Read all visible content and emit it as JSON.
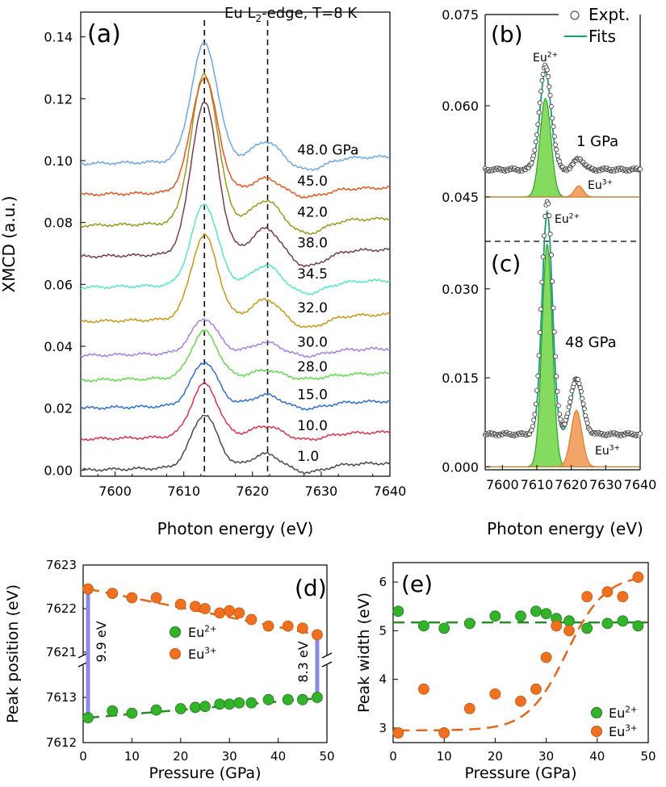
{
  "chart_data": [
    {
      "id": "a",
      "type": "line",
      "panel_label": "(a)",
      "title": "Eu L2-edge, T=8 K",
      "title_parts": {
        "pre": "Eu L",
        "sub": "2",
        "post": "-edge, T=8 K"
      },
      "xlabel": "Photon energy (eV)",
      "ylabel": "XMCD (a.u.)",
      "xlim": [
        7595,
        7640
      ],
      "ylim": [
        -0.002,
        0.148
      ],
      "xticks": [
        7600,
        7610,
        7620,
        7630,
        7640
      ],
      "yticks": [
        0.0,
        0.02,
        0.04,
        0.06,
        0.08,
        0.1,
        0.12,
        0.14
      ],
      "ytick_labels": [
        "0.00",
        "0.02",
        "0.04",
        "0.06",
        "0.08",
        "0.10",
        "0.12",
        "0.14"
      ],
      "vlines": [
        7613,
        7622.2
      ],
      "series": [
        {
          "name": "1.0",
          "label": "1.0",
          "color": "#4a4a4a",
          "offset": 0.0,
          "peak1": 0.017,
          "peak2": 0.004
        },
        {
          "name": "10.0",
          "label": "10.0",
          "color": "#e0324a",
          "offset": 0.01,
          "peak1": 0.017,
          "peak2": 0.003
        },
        {
          "name": "15.0",
          "label": "15.0",
          "color": "#2e6fd1",
          "offset": 0.02,
          "peak1": 0.014,
          "peak2": 0.003
        },
        {
          "name": "28.0",
          "label": "28.0",
          "color": "#5edc4a",
          "offset": 0.029,
          "peak1": 0.015,
          "peak2": 0.002
        },
        {
          "name": "30.0",
          "label": "30.0",
          "color": "#a87ee0",
          "offset": 0.037,
          "peak1": 0.011,
          "peak2": 0.003
        },
        {
          "name": "32.0",
          "label": "32.0",
          "color": "#c99812",
          "offset": 0.048,
          "peak1": 0.027,
          "peak2": 0.006
        },
        {
          "name": "34.5",
          "label": "34.5",
          "color": "#52e8c8",
          "offset": 0.059,
          "peak1": 0.026,
          "peak2": 0.006
        },
        {
          "name": "38.0",
          "label": "38.0",
          "color": "#7a3e48",
          "offset": 0.069,
          "peak1": 0.049,
          "peak2": 0.008
        },
        {
          "name": "42.0",
          "label": "42.0",
          "color": "#9a9a1c",
          "offset": 0.079,
          "peak1": 0.048,
          "peak2": 0.007
        },
        {
          "name": "45.0",
          "label": "45.0",
          "color": "#e8551e",
          "offset": 0.089,
          "peak1": 0.037,
          "peak2": 0.004
        },
        {
          "name": "48.0 GPa",
          "label": "48.0 GPa",
          "color": "#6aa9e4",
          "offset": 0.099,
          "peak1": 0.038,
          "peak2": 0.006
        }
      ]
    },
    {
      "id": "b",
      "type": "line",
      "panel_label": "(b)",
      "annotation": "1 GPa",
      "xlim": [
        7595,
        7640
      ],
      "ylim": [
        0.045,
        0.075
      ],
      "yticks": [
        0.045,
        0.06,
        0.075
      ],
      "ytick_labels": [
        "0.045",
        "0.060",
        "0.075"
      ],
      "legend": {
        "placement": "top-right",
        "entries": [
          {
            "label": "Expt.",
            "marker": "open-circle"
          },
          {
            "label": "Fits",
            "color": "#1a9a7a"
          }
        ]
      },
      "components": [
        {
          "name": "Eu2+",
          "center": 7612.5,
          "height": 0.0162,
          "sigma": 1.6,
          "color": "#7ed957"
        },
        {
          "name": "Eu3+",
          "center": 7622.2,
          "height": 0.0018,
          "sigma": 1.3,
          "color": "#f0a060"
        }
      ],
      "baseline": 0.0495,
      "peak_labels": [
        {
          "base": "Eu",
          "sup": "2+",
          "x": 7612.5
        },
        {
          "base": "Eu",
          "sup": "3+",
          "x": 7625
        }
      ]
    },
    {
      "id": "c",
      "type": "line",
      "panel_label": "(c)",
      "annotation": "48 GPa",
      "xlabel": "Photon energy (eV)",
      "xlim": [
        7595,
        7640
      ],
      "ylim": [
        -0.0005,
        0.038
      ],
      "xticks": [
        7600,
        7610,
        7620,
        7630,
        7640
      ],
      "yticks": [
        0.0,
        0.015,
        0.03
      ],
      "ytick_labels": [
        "0.000",
        "0.015",
        "0.030"
      ],
      "components": [
        {
          "name": "Eu2+",
          "center": 7613.0,
          "height": 0.0375,
          "sigma": 1.5,
          "color": "#7ed957"
        },
        {
          "name": "Eu3+",
          "center": 7621.5,
          "height": 0.0095,
          "sigma": 1.6,
          "color": "#f0a060"
        }
      ],
      "baseline": 0.0055,
      "peak_labels": [
        {
          "base": "Eu",
          "sup": "2+",
          "x": 7617
        },
        {
          "base": "Eu",
          "sup": "3+",
          "x": 7627
        }
      ]
    },
    {
      "id": "d",
      "type": "scatter",
      "panel_label": "(d)",
      "xlabel": "Pressure (GPa)",
      "ylabel": "Peak position (eV)",
      "xlim": [
        0,
        50
      ],
      "xticks": [
        0,
        10,
        20,
        30,
        40,
        50
      ],
      "broken_axis": {
        "upper": [
          7621,
          7623
        ],
        "lower": [
          7612,
          7613.5
        ]
      },
      "yticks_upper": [
        7621,
        7622,
        7623
      ],
      "yticks_lower": [
        7612,
        7613
      ],
      "series": [
        {
          "name": "Eu2+",
          "color": "#32b32a",
          "x": [
            1,
            6,
            10,
            15,
            20,
            23,
            25,
            28,
            30,
            32,
            34.5,
            38,
            42,
            45,
            48
          ],
          "y": [
            7612.55,
            7612.7,
            7612.65,
            7612.72,
            7612.75,
            7612.78,
            7612.8,
            7612.85,
            7612.85,
            7612.88,
            7612.88,
            7612.95,
            7612.95,
            7612.95,
            7613.0
          ],
          "fit": [
            [
              1,
              7612.55
            ],
            [
              48,
              7612.98
            ]
          ]
        },
        {
          "name": "Eu3+",
          "color": "#f07020",
          "x": [
            1,
            6,
            10,
            15,
            20,
            23,
            25,
            28,
            30,
            32,
            34.5,
            38,
            42,
            45,
            48
          ],
          "y": [
            7622.45,
            7622.35,
            7622.25,
            7622.25,
            7622.1,
            7622.05,
            7622.0,
            7621.9,
            7621.95,
            7621.9,
            7621.75,
            7621.6,
            7621.6,
            7621.55,
            7621.4
          ],
          "fit": [
            [
              1,
              7622.45
            ],
            [
              48,
              7621.4
            ]
          ]
        }
      ],
      "annotations": [
        {
          "text": "9.9 eV",
          "x": 1
        },
        {
          "text": "8.3 eV",
          "x": 48
        }
      ],
      "legend_parts": [
        {
          "base": "Eu",
          "sup": "2+"
        },
        {
          "base": "Eu",
          "sup": "3+"
        }
      ]
    },
    {
      "id": "e",
      "type": "scatter",
      "panel_label": "(e)",
      "xlabel": "Pressure (GPa)",
      "ylabel": "Peak width (eV)",
      "xlim": [
        0,
        50
      ],
      "ylim": [
        2.7,
        6.4
      ],
      "xticks": [
        0,
        10,
        20,
        30,
        40,
        50
      ],
      "yticks": [
        3,
        4,
        5,
        6
      ],
      "series": [
        {
          "name": "Eu2+",
          "color": "#32b32a",
          "x": [
            1,
            6,
            10,
            15,
            20,
            25,
            28,
            30,
            32,
            34.5,
            38,
            42,
            45,
            48
          ],
          "y": [
            5.4,
            5.1,
            5.05,
            5.15,
            5.3,
            5.3,
            5.4,
            5.35,
            5.25,
            5.2,
            5.05,
            5.15,
            5.2,
            5.1
          ],
          "fit_constant": 5.17
        },
        {
          "name": "Eu3+",
          "color": "#f07020",
          "x": [
            1,
            6,
            10,
            15,
            20,
            25,
            28,
            30,
            32,
            34.5,
            38,
            42,
            45,
            48
          ],
          "y": [
            2.9,
            3.8,
            2.9,
            3.4,
            3.7,
            3.55,
            3.8,
            4.45,
            5.1,
            5.0,
            5.7,
            5.8,
            5.7,
            6.1
          ]
        }
      ],
      "legend_parts": [
        {
          "base": "Eu",
          "sup": "2+"
        },
        {
          "base": "Eu",
          "sup": "3+"
        }
      ]
    }
  ]
}
